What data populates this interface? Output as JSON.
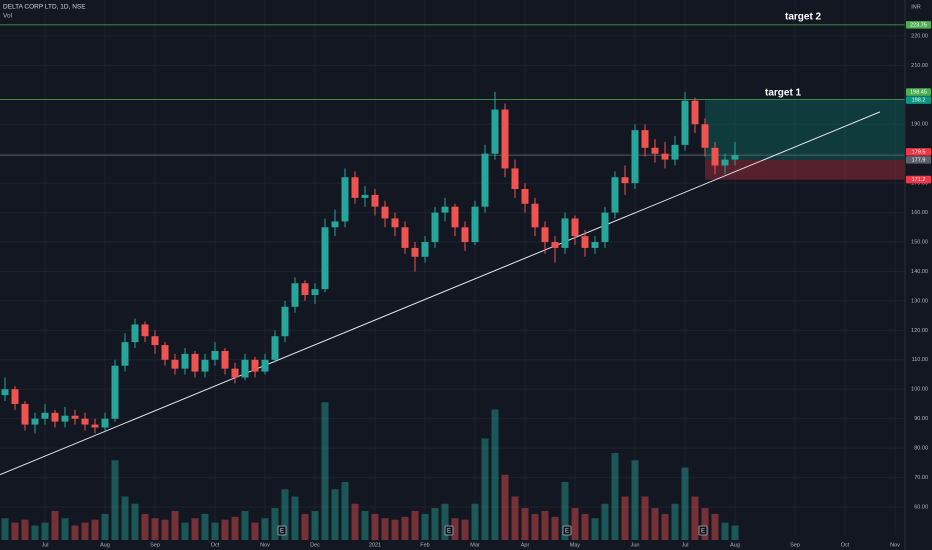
{
  "chart_data": {
    "type": "candlestick",
    "title": "DELTA CORP LTD, 1D, NSE",
    "subtitle": "Vol",
    "currency": "INR",
    "categories": [
      null,
      null,
      null,
      null,
      "Jul",
      null,
      null,
      null,
      null,
      null,
      "Aug",
      null,
      null,
      null,
      null,
      "Sep",
      null,
      null,
      null,
      null,
      null,
      "Oct",
      null,
      null,
      null,
      null,
      "Nov",
      null,
      null,
      null,
      null,
      "Dec",
      null,
      null,
      null,
      null,
      null,
      "2021",
      null,
      null,
      null,
      null,
      "Feb",
      null,
      null,
      null,
      null,
      "Mar",
      null,
      null,
      null,
      null,
      "Apr",
      null,
      null,
      null,
      null,
      "May",
      null,
      null,
      null,
      null,
      null,
      "Jun",
      null,
      null,
      null,
      null,
      "Jul",
      null,
      null,
      null,
      null,
      "Aug",
      null,
      null,
      null,
      null,
      null,
      "Sep",
      null,
      null,
      null,
      null,
      "Oct",
      null,
      null,
      null,
      null,
      "Nov"
    ],
    "open": [
      98,
      100,
      95,
      88,
      90,
      92,
      89,
      91,
      90,
      88,
      87,
      90,
      108,
      116,
      122,
      118,
      115,
      110,
      107,
      112,
      106,
      110,
      113,
      107,
      104,
      110,
      106,
      110,
      118,
      128,
      136,
      132,
      134,
      155,
      157,
      172,
      165,
      166,
      162,
      158,
      155,
      148,
      145,
      150,
      160,
      162,
      155,
      150,
      162,
      180,
      195,
      175,
      168,
      163,
      155,
      150,
      148,
      158,
      152,
      148,
      150,
      160,
      172,
      170,
      188,
      182,
      180,
      178,
      183,
      198,
      190,
      182,
      176,
      178,
      null,
      null,
      null,
      null,
      null,
      null,
      null,
      null,
      null,
      null,
      null,
      null,
      null,
      null,
      null,
      null
    ],
    "high": [
      104,
      101,
      96,
      92,
      95,
      93,
      94,
      93,
      92,
      90,
      92,
      110,
      119,
      124,
      123,
      120,
      116,
      112,
      114,
      113,
      112,
      116,
      114,
      109,
      112,
      111,
      112,
      120,
      130,
      138,
      137,
      136,
      158,
      161,
      175,
      174,
      169,
      168,
      164,
      160,
      157,
      150,
      152,
      162,
      165,
      163,
      157,
      164,
      183,
      201,
      197,
      178,
      170,
      165,
      157,
      152,
      160,
      159,
      154,
      152,
      162,
      174,
      176,
      190,
      190,
      185,
      184,
      186,
      201,
      199,
      192,
      184,
      180,
      184,
      null,
      null,
      null,
      null,
      null,
      null,
      null,
      null,
      null,
      null,
      null,
      null,
      null,
      null,
      null,
      null
    ],
    "low": [
      96,
      93,
      86,
      85,
      88,
      87,
      87,
      88,
      86,
      85,
      86,
      89,
      106,
      114,
      116,
      112,
      108,
      105,
      105,
      104,
      104,
      108,
      105,
      102,
      103,
      104,
      105,
      109,
      116,
      126,
      130,
      129,
      133,
      152,
      155,
      163,
      162,
      159,
      155,
      152,
      146,
      140,
      143,
      148,
      157,
      152,
      147,
      149,
      160,
      178,
      172,
      165,
      160,
      152,
      146,
      143,
      146,
      149,
      145,
      146,
      148,
      158,
      166,
      168,
      179,
      177,
      175,
      176,
      181,
      187,
      179,
      173,
      173,
      176,
      null,
      null,
      null,
      null,
      null,
      null,
      null,
      null,
      null,
      null,
      null,
      null,
      null,
      null,
      null,
      null
    ],
    "close": [
      100,
      95,
      88,
      90,
      92,
      89,
      91,
      90,
      88,
      87,
      90,
      108,
      116,
      122,
      118,
      115,
      110,
      107,
      112,
      106,
      110,
      113,
      107,
      104,
      110,
      106,
      110,
      118,
      128,
      136,
      132,
      134,
      155,
      157,
      172,
      165,
      166,
      162,
      158,
      155,
      148,
      145,
      150,
      160,
      162,
      155,
      150,
      162,
      180,
      195,
      175,
      168,
      163,
      155,
      150,
      148,
      158,
      152,
      148,
      150,
      160,
      172,
      170,
      188,
      182,
      180,
      178,
      183,
      198,
      190,
      182,
      176,
      178,
      179.5,
      null,
      null,
      null,
      null,
      null,
      null,
      null,
      null,
      null,
      null,
      null,
      null,
      null,
      null,
      null,
      null
    ],
    "volume": [
      15,
      12,
      14,
      10,
      12,
      20,
      15,
      10,
      12,
      14,
      18,
      55,
      30,
      25,
      18,
      15,
      14,
      20,
      12,
      15,
      18,
      12,
      14,
      16,
      20,
      12,
      15,
      22,
      35,
      30,
      18,
      20,
      95,
      35,
      40,
      25,
      20,
      18,
      15,
      14,
      16,
      20,
      18,
      22,
      25,
      15,
      14,
      25,
      70,
      90,
      45,
      30,
      22,
      18,
      20,
      16,
      40,
      22,
      18,
      15,
      25,
      60,
      30,
      55,
      30,
      22,
      18,
      25,
      50,
      30,
      22,
      18,
      12,
      10,
      null,
      null,
      null,
      null,
      null,
      null,
      null,
      null,
      null,
      null,
      null,
      null,
      null,
      null,
      null,
      null
    ],
    "volume_lim": [
      0,
      100
    ],
    "up_color": "#26a69a",
    "down_color": "#ef5350",
    "ylim": [
      45.4,
      232.2
    ],
    "yticks": [
      {
        "value": 60,
        "label": "60.00"
      },
      {
        "value": 70,
        "label": "70.00"
      },
      {
        "value": 80,
        "label": "80.00"
      },
      {
        "value": 90,
        "label": "90.00"
      },
      {
        "value": 100,
        "label": "100.00"
      },
      {
        "value": 110,
        "label": "110.00"
      },
      {
        "value": 120,
        "label": "120.00"
      },
      {
        "value": 130,
        "label": "130.00"
      },
      {
        "value": 140,
        "label": "140.00"
      },
      {
        "value": 150,
        "label": "150.00"
      },
      {
        "value": 160,
        "label": "160.00"
      },
      {
        "value": 170,
        "label": "170.00"
      },
      {
        "value": 180,
        "label": "180.00"
      },
      {
        "value": 190,
        "label": "190.00"
      },
      {
        "value": 210,
        "label": "210.00"
      },
      {
        "value": 220,
        "label": "220.00"
      }
    ],
    "grid": true,
    "levels": [
      {
        "value": 223.75,
        "color": "#4caf50"
      },
      {
        "value": 198.45,
        "color": "#4caf50"
      },
      {
        "value": 179.5,
        "color": "#5d606b"
      }
    ],
    "price_labels": [
      {
        "value": 223.75,
        "color": "#4caf50"
      },
      {
        "value": 198.45,
        "color": "#4caf50"
      },
      {
        "value": 198.2,
        "color": "#089981"
      },
      {
        "value": 179.5,
        "color": "#f23645"
      },
      {
        "value": 177.9,
        "color": "#5d606b"
      },
      {
        "value": 171.2,
        "color": "#f23645"
      }
    ],
    "position": {
      "entry": 177.9,
      "target": 198.2,
      "stop": 171.2
    },
    "trendline": {
      "start": 71,
      "end": 194.2
    },
    "annotations": [
      "target 2",
      "target 1"
    ],
    "events": [
      "E",
      "E",
      "E",
      "E"
    ]
  }
}
